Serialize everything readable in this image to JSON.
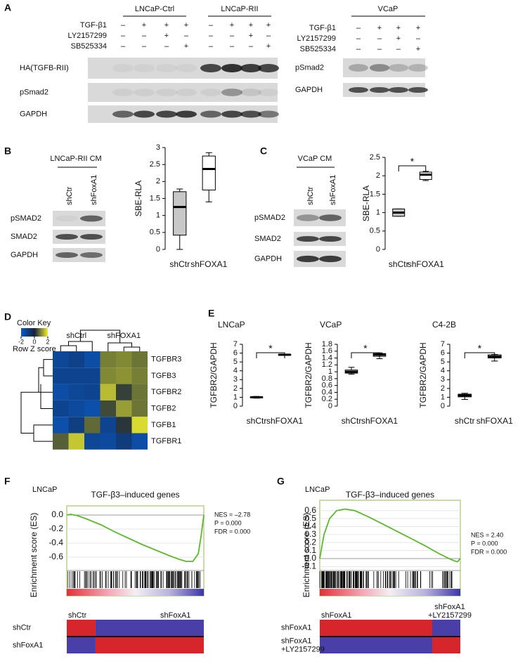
{
  "panels": {
    "a": {
      "label": "A",
      "lncap": {
        "groups": [
          "LNCaP-Ctrl",
          "LNCaP-RII"
        ],
        "treatments": [
          "TGF-β1",
          "LY2157299",
          "SB525334"
        ],
        "signs": [
          [
            "–",
            "+",
            "+",
            "+",
            "–",
            "+",
            "+",
            "+"
          ],
          [
            "–",
            "–",
            "+",
            "–",
            "–",
            "–",
            "+",
            "–"
          ],
          [
            "–",
            "–",
            "–",
            "+",
            "–",
            "–",
            "–",
            "+"
          ]
        ],
        "blots": [
          "HA(TGFB-RII)",
          "pSmad2",
          "GAPDH"
        ]
      },
      "vcap": {
        "groups": [
          "VCaP"
        ],
        "treatments": [
          "TGF-β1",
          "LY2157299",
          "SB525334"
        ],
        "signs": [
          [
            "–",
            "+",
            "+",
            "+"
          ],
          [
            "–",
            "–",
            "+",
            "–"
          ],
          [
            "–",
            "–",
            "–",
            "+"
          ]
        ],
        "blots": [
          "pSmad2",
          "GAPDH"
        ]
      }
    },
    "b": {
      "label": "B",
      "blot": {
        "title": "LNCaP-RII CM",
        "lanes": [
          "shCtr",
          "shFoxA1"
        ],
        "rows": [
          "pSMAD2",
          "SMAD2",
          "GAPDH"
        ]
      },
      "chart": {
        "type": "box",
        "ylabel": "SBE-RLA",
        "categories": [
          "shCtr",
          "shFOXA1"
        ],
        "colors": [
          "#c8c8c8",
          "#ffffff"
        ],
        "boxes": [
          {
            "min": 0,
            "q1": 0.42,
            "median": 1.25,
            "q3": 1.7,
            "max": 1.78
          },
          {
            "min": 1.4,
            "q1": 1.75,
            "median": 2.37,
            "q3": 2.75,
            "max": 2.85
          }
        ],
        "ylim": [
          0,
          3
        ],
        "yticks": [
          0,
          0.5,
          1,
          1.5,
          2,
          2.5,
          3
        ]
      }
    },
    "c": {
      "label": "C",
      "blot": {
        "title": "VCaP CM",
        "lanes": [
          "shCtr",
          "shFoxA1"
        ],
        "rows": [
          "pSMAD2",
          "SMAD2",
          "GAPDH"
        ]
      },
      "chart": {
        "type": "box",
        "ylabel": "SBE-RLA",
        "categories": [
          "shCtr",
          "shFOXA1"
        ],
        "colors": [
          "#c8c8c8",
          "#ffffff"
        ],
        "significance": "*",
        "boxes": [
          {
            "min": 0.9,
            "q1": 0.9,
            "median": 1.0,
            "q3": 1.1,
            "max": 1.1
          },
          {
            "min": 1.87,
            "q1": 1.9,
            "median": 2.03,
            "q3": 2.1,
            "max": 2.12
          }
        ],
        "ylim": [
          0,
          2.5
        ],
        "yticks": [
          0,
          0.5,
          1,
          1.5,
          2,
          2.5
        ]
      }
    },
    "d": {
      "label": "D",
      "color_key": {
        "title": "Color Key",
        "label": "Row Z score",
        "ticks": [
          -2,
          0,
          2
        ],
        "zlim": [
          -2,
          2
        ],
        "colors": [
          "#0a5cc8",
          "#14213a",
          "#f0f030"
        ]
      },
      "heatmap": {
        "columns": [
          "shCtrl",
          "shFOXA1"
        ],
        "rows": [
          "TGFBR3",
          "TGFB3",
          "TGFBR2",
          "TGFB2",
          "TGFB1",
          "TGFBR1"
        ],
        "values": [
          [
            -1.3,
            -1.1,
            -1.5,
            0.9,
            1.0,
            0.8
          ],
          [
            -1.2,
            -1.2,
            -1.2,
            1.0,
            1.1,
            0.9
          ],
          [
            -1.5,
            -1.3,
            -1.2,
            1.5,
            0.3,
            0.8
          ],
          [
            -1.2,
            -1.4,
            -1.6,
            0.4,
            1.2,
            0.8
          ],
          [
            -1.6,
            -1.0,
            0.7,
            -1.2,
            0.2,
            1.8
          ],
          [
            0.6,
            1.6,
            -1.3,
            -1.4,
            -0.9,
            -1.5
          ]
        ]
      }
    },
    "e": {
      "label": "E",
      "charts": [
        {
          "type": "box",
          "title": "LNCaP",
          "ylabel": "TGFBR2/GAPDH",
          "categories": [
            "shCtr",
            "shFOXA1"
          ],
          "colors": [
            "#ffffff",
            "#c8c8c8"
          ],
          "significance": "*",
          "boxes": [
            {
              "min": 0.9,
              "q1": 0.95,
              "median": 1.0,
              "q3": 1.05,
              "max": 1.1
            },
            {
              "min": 5.78,
              "q1": 5.8,
              "median": 5.82,
              "q3": 5.84,
              "max": 5.85
            }
          ],
          "ylim": [
            0,
            7
          ],
          "yticks": [
            0,
            1,
            2,
            3,
            4,
            5,
            6,
            7
          ]
        },
        {
          "type": "box",
          "title": "VCaP",
          "ylabel": "TGFBR2/GAPDH",
          "categories": [
            "shCtr",
            "shFOXA1"
          ],
          "colors": [
            "#ffffff",
            "#c8c8c8"
          ],
          "significance": "*",
          "boxes": [
            {
              "min": 0.93,
              "q1": 0.96,
              "median": 1.0,
              "q3": 1.05,
              "max": 1.13
            },
            {
              "min": 1.38,
              "q1": 1.45,
              "median": 1.5,
              "q3": 1.53,
              "max": 1.55
            }
          ],
          "ylim": [
            0,
            1.8
          ],
          "yticks": [
            0,
            0.2,
            0.4,
            0.6,
            0.8,
            1,
            1.2,
            1.4,
            1.6,
            1.8
          ]
        },
        {
          "type": "box",
          "title": "C4-2B",
          "ylabel": "TGFBR2/GAPDH",
          "categories": [
            "shCtr",
            "shFOXA1"
          ],
          "colors": [
            "#ffffff",
            "#c8c8c8"
          ],
          "significance": "*",
          "boxes": [
            {
              "min": 0.75,
              "q1": 1.05,
              "median": 1.2,
              "q3": 1.35,
              "max": 1.45
            },
            {
              "min": 5.1,
              "q1": 5.45,
              "median": 5.6,
              "q3": 5.8,
              "max": 5.85
            }
          ],
          "ylim": [
            0,
            7
          ],
          "yticks": [
            0,
            1,
            2,
            3,
            4,
            5,
            6,
            7
          ]
        }
      ]
    },
    "f": {
      "label": "F",
      "cell": "LNCaP",
      "chart": {
        "type": "line",
        "title": "TGF-β3–induced genes",
        "ylabel": "Enrichment score (ES)",
        "color": "#5cb82e",
        "x": [
          0,
          0.03,
          0.08,
          0.15,
          0.25,
          0.35,
          0.45,
          0.55,
          0.65,
          0.75,
          0.82,
          0.87,
          0.92,
          0.96,
          0.98,
          1
        ],
        "values": [
          0,
          0.01,
          -0.01,
          -0.06,
          -0.14,
          -0.24,
          -0.33,
          -0.42,
          -0.5,
          -0.58,
          -0.63,
          -0.66,
          -0.66,
          -0.55,
          -0.3,
          0
        ],
        "xlim": [
          0,
          1
        ],
        "ylim": [
          -0.79,
          0.13
        ],
        "yticks": [
          {
            "value": 0,
            "label": "0.0"
          },
          -0.2,
          -0.4,
          -0.6
        ]
      },
      "stats": [
        "NES = –2.78",
        "P = 0.000",
        "FDR = 0.000"
      ],
      "phenotype": {
        "columns": [
          [
            "shCtr"
          ],
          [
            "shFoxA1"
          ]
        ],
        "rows": [
          [
            "shCtr"
          ],
          [
            "shFoxA1"
          ]
        ],
        "split": 0.21,
        "colors": [
          "#d7262b",
          "#4a3fa8"
        ]
      }
    },
    "g": {
      "label": "G",
      "cell": "LNCaP",
      "chart": {
        "type": "line",
        "title": "TGF-β3–induced genes",
        "ylabel": "Enrichment score (ES)",
        "color": "#5cb82e",
        "x": [
          0,
          0.03,
          0.07,
          0.12,
          0.18,
          0.25,
          0.35,
          0.45,
          0.55,
          0.65,
          0.75,
          0.85,
          0.92,
          0.96,
          0.98,
          1
        ],
        "values": [
          0,
          0.3,
          0.5,
          0.6,
          0.62,
          0.6,
          0.52,
          0.43,
          0.34,
          0.25,
          0.16,
          0.06,
          0,
          -0.03,
          -0.04,
          0
        ],
        "xlim": [
          0,
          1
        ],
        "ylim": [
          -0.15,
          0.73
        ],
        "yticks": [
          0.6,
          0.5,
          0.4,
          0.3,
          0.2,
          0.1,
          {
            "value": 0,
            "label": "0.0"
          },
          -0.1
        ]
      },
      "stats": [
        "NES = 2.40",
        "P = 0.000",
        "FDR = 0.000"
      ],
      "phenotype": {
        "columns": [
          [
            "shFoxA1"
          ],
          [
            "shFoxA1",
            "+LY2157299"
          ]
        ],
        "rows": [
          [
            "shFoxA1"
          ],
          [
            "shFoxA1",
            "+LY2157299"
          ]
        ],
        "split": 0.8,
        "colors": [
          "#d7262b",
          "#4a3fa8"
        ]
      }
    }
  }
}
